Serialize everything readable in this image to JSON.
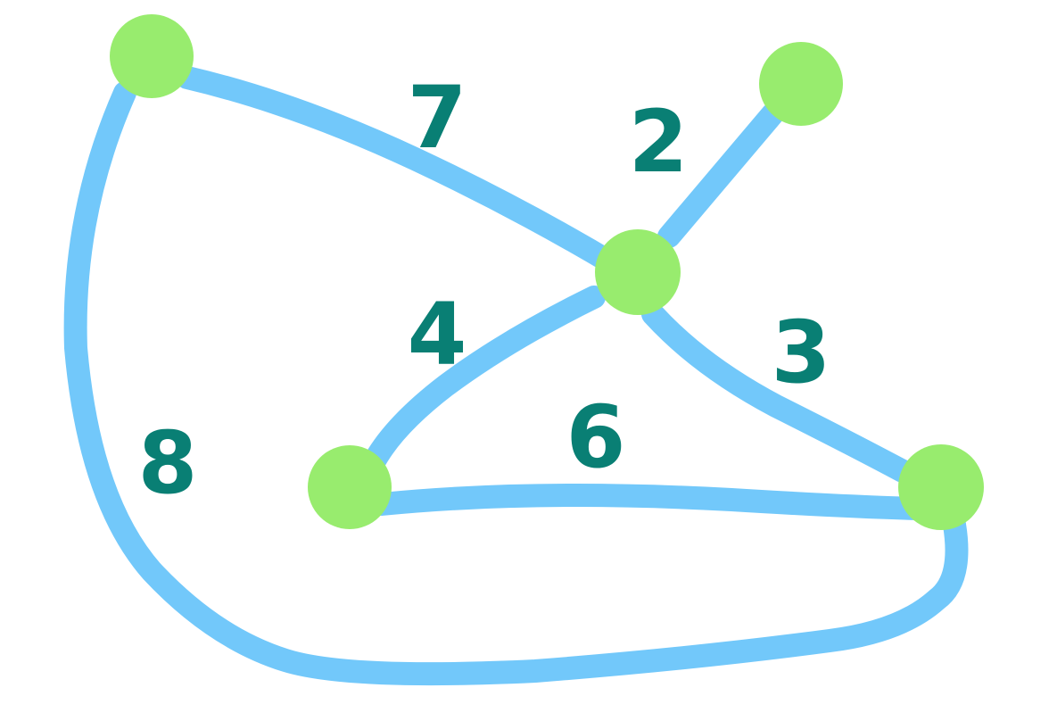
{
  "colors": {
    "node": "#98EC6E",
    "edge": "#72C8FA",
    "weight": "#097F74",
    "background": "#FFFFFF"
  },
  "graph": {
    "nodes": [
      {
        "id": "n1"
      },
      {
        "id": "n2"
      },
      {
        "id": "n3"
      },
      {
        "id": "n4"
      },
      {
        "id": "n5"
      }
    ],
    "edges": [
      {
        "id": "e1",
        "from": "n1",
        "to": "n3",
        "weight": "7"
      },
      {
        "id": "e2",
        "from": "n2",
        "to": "n3",
        "weight": "2"
      },
      {
        "id": "e3",
        "from": "n3",
        "to": "n4",
        "weight": "4"
      },
      {
        "id": "e4",
        "from": "n3",
        "to": "n5",
        "weight": "3"
      },
      {
        "id": "e5",
        "from": "n4",
        "to": "n5",
        "weight": "6"
      },
      {
        "id": "e6",
        "from": "n1",
        "to": "n5",
        "weight": "8"
      }
    ]
  }
}
